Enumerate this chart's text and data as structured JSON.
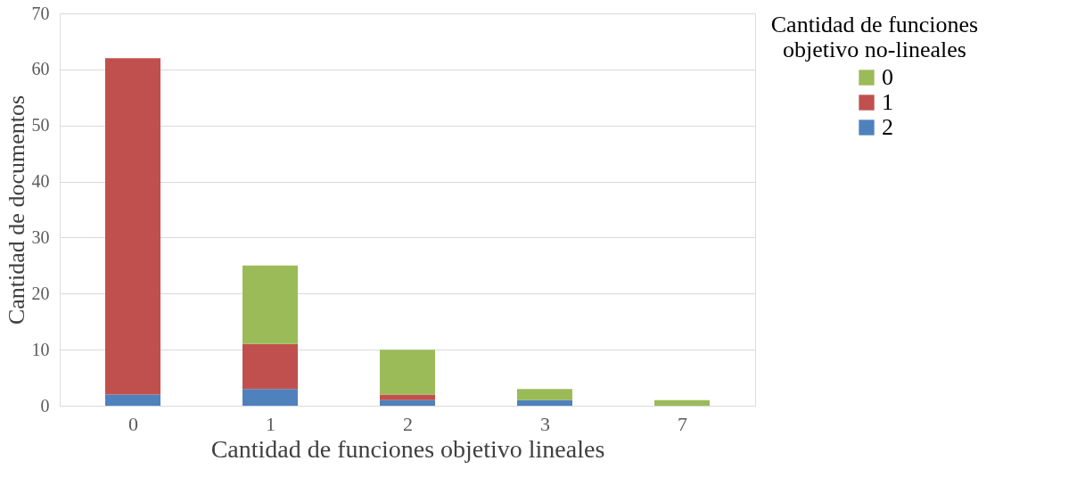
{
  "chart_data": {
    "type": "bar",
    "stacked": true,
    "xlabel": "Cantidad de funciones objetivo lineales",
    "ylabel": "Cantidad de documentos",
    "legend_title": "Cantidad de funciones objetivo no-lineales",
    "categories": [
      "0",
      "1",
      "2",
      "3",
      "7"
    ],
    "series": [
      {
        "name": "2",
        "color": "#4f81bd",
        "values": [
          2,
          3,
          1,
          1,
          0
        ]
      },
      {
        "name": "1",
        "color": "#c0504d",
        "values": [
          60,
          8,
          1,
          0,
          0
        ]
      },
      {
        "name": "0",
        "color": "#9bbb59",
        "values": [
          0,
          14,
          8,
          2,
          1
        ]
      }
    ],
    "ylim": [
      0,
      70
    ],
    "yticks": [
      0,
      10,
      20,
      30,
      40,
      50,
      60,
      70
    ],
    "grid": "y",
    "legend": "right"
  }
}
